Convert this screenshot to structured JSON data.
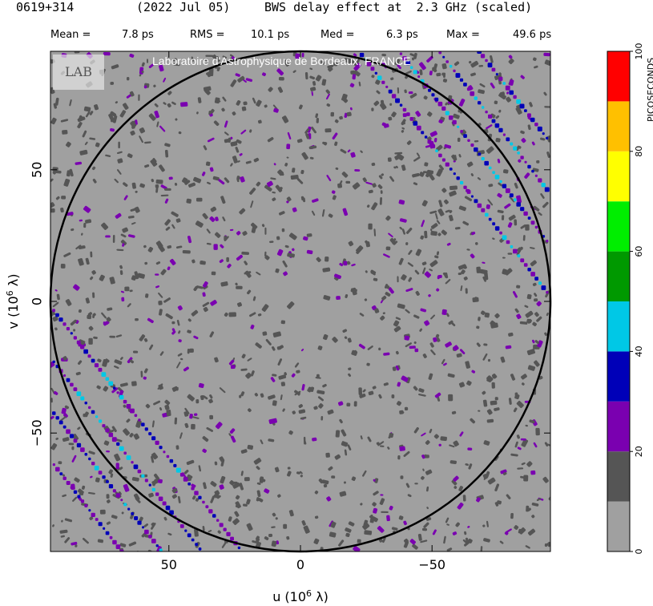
{
  "header": {
    "source": "0619+314",
    "date": "(2022 Jul 05)",
    "title": "BWS delay effect at  2.3 GHz (scaled)"
  },
  "stats": {
    "mean_label": "Mean =",
    "mean_value": "7.8 ps",
    "rms_label": "RMS =",
    "rms_value": "10.1 ps",
    "med_label": "Med =",
    "med_value": "6.3 ps",
    "max_label": "Max =",
    "max_value": "49.6 ps"
  },
  "watermark": {
    "banner": "Laboratoire d'Astrophysique de Bordeaux, FRANCE",
    "logo_text": "LAB"
  },
  "chart_data": {
    "type": "heatmap",
    "title": "BWS delay effect at  2.3 GHz (scaled)",
    "xlabel": "u  (10^6 λ)",
    "ylabel": "v  (10^6 λ)",
    "xlabel_parts": [
      "u  (10",
      "6",
      " λ)"
    ],
    "ylabel_parts": [
      "v  (10",
      "6",
      " λ)"
    ],
    "xlim": [
      95,
      -95
    ],
    "ylim": [
      -95,
      95
    ],
    "xticks": [
      50,
      0,
      -50
    ],
    "yticks": [
      50,
      0,
      -50
    ],
    "xtick_labels": [
      "50",
      "0",
      "−50"
    ],
    "ytick_labels": [
      "50",
      "0",
      "−50"
    ],
    "circle_radius": 95,
    "colorbar": {
      "label": "PICOSECONDS",
      "min": 0,
      "max": 100,
      "ticks": [
        0,
        20,
        40,
        60,
        80,
        100
      ],
      "tick_labels": [
        "0",
        "20",
        "40",
        "60",
        "80",
        "100"
      ],
      "levels": [
        {
          "from": 0,
          "to": 10,
          "color": "#a0a0a0"
        },
        {
          "from": 10,
          "to": 20,
          "color": "#555555"
        },
        {
          "from": 20,
          "to": 30,
          "color": "#7a00b0"
        },
        {
          "from": 30,
          "to": 40,
          "color": "#0000b8"
        },
        {
          "from": 40,
          "to": 50,
          "color": "#00c8e6"
        },
        {
          "from": 50,
          "to": 60,
          "color": "#009900"
        },
        {
          "from": 60,
          "to": 70,
          "color": "#00ee00"
        },
        {
          "from": 70,
          "to": 80,
          "color": "#ffff00"
        },
        {
          "from": 80,
          "to": 90,
          "color": "#ffc000"
        },
        {
          "from": 90,
          "to": 100,
          "color": "#ff0000"
        }
      ]
    },
    "structure": {
      "background_level_ps": 5,
      "noise_level_ps": 15,
      "ridge_peak_ps": 45,
      "ridge_angle_deg": 52,
      "ridge_offsets": [
        76,
        88,
        100,
        112
      ]
    }
  }
}
